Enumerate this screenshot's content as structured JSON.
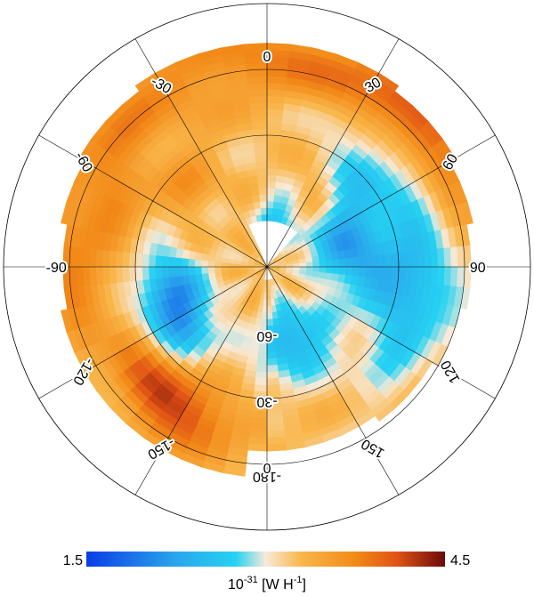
{
  "chart_data": {
    "type": "heatmap",
    "projection": "polar (azimuthal)",
    "colorbar": {
      "min": 1.5,
      "max": 4.5,
      "min_label": "1.5",
      "max_label": "4.5",
      "unit_base": "10",
      "unit_exp": "-31",
      "unit_rest": " [W H",
      "unit_exp2": "-1",
      "unit_close": "]",
      "stops": [
        {
          "v": 1.5,
          "color": "#0a3de6"
        },
        {
          "v": 2.25,
          "color": "#2aa6ec"
        },
        {
          "v": 2.75,
          "color": "#26d2f2"
        },
        {
          "v": 3.0,
          "color": "#f7ead9"
        },
        {
          "v": 3.3,
          "color": "#f9b64a"
        },
        {
          "v": 3.75,
          "color": "#f28a18"
        },
        {
          "v": 4.1,
          "color": "#e05215"
        },
        {
          "v": 4.5,
          "color": "#6b0a0a"
        }
      ]
    },
    "meridian_labels": [
      {
        "lon": 0,
        "text": "0"
      },
      {
        "lon": 30,
        "text": "30"
      },
      {
        "lon": -30,
        "text": "-30"
      },
      {
        "lon": 60,
        "text": "60"
      },
      {
        "lon": -60,
        "text": "-60"
      },
      {
        "lon": 90,
        "text": "90"
      },
      {
        "lon": -90,
        "text": "-90"
      },
      {
        "lon": 120,
        "text": "120"
      },
      {
        "lon": -120,
        "text": "-120"
      },
      {
        "lon": 150,
        "text": "150"
      },
      {
        "lon": -150,
        "text": "-150"
      },
      {
        "lon": 180,
        "text": "-180"
      }
    ],
    "latitude_labels": [
      {
        "lat": -60,
        "text": "-60"
      },
      {
        "lat": -30,
        "text": "-30"
      },
      {
        "lat": 0,
        "text": "0"
      }
    ],
    "grid": true
  }
}
